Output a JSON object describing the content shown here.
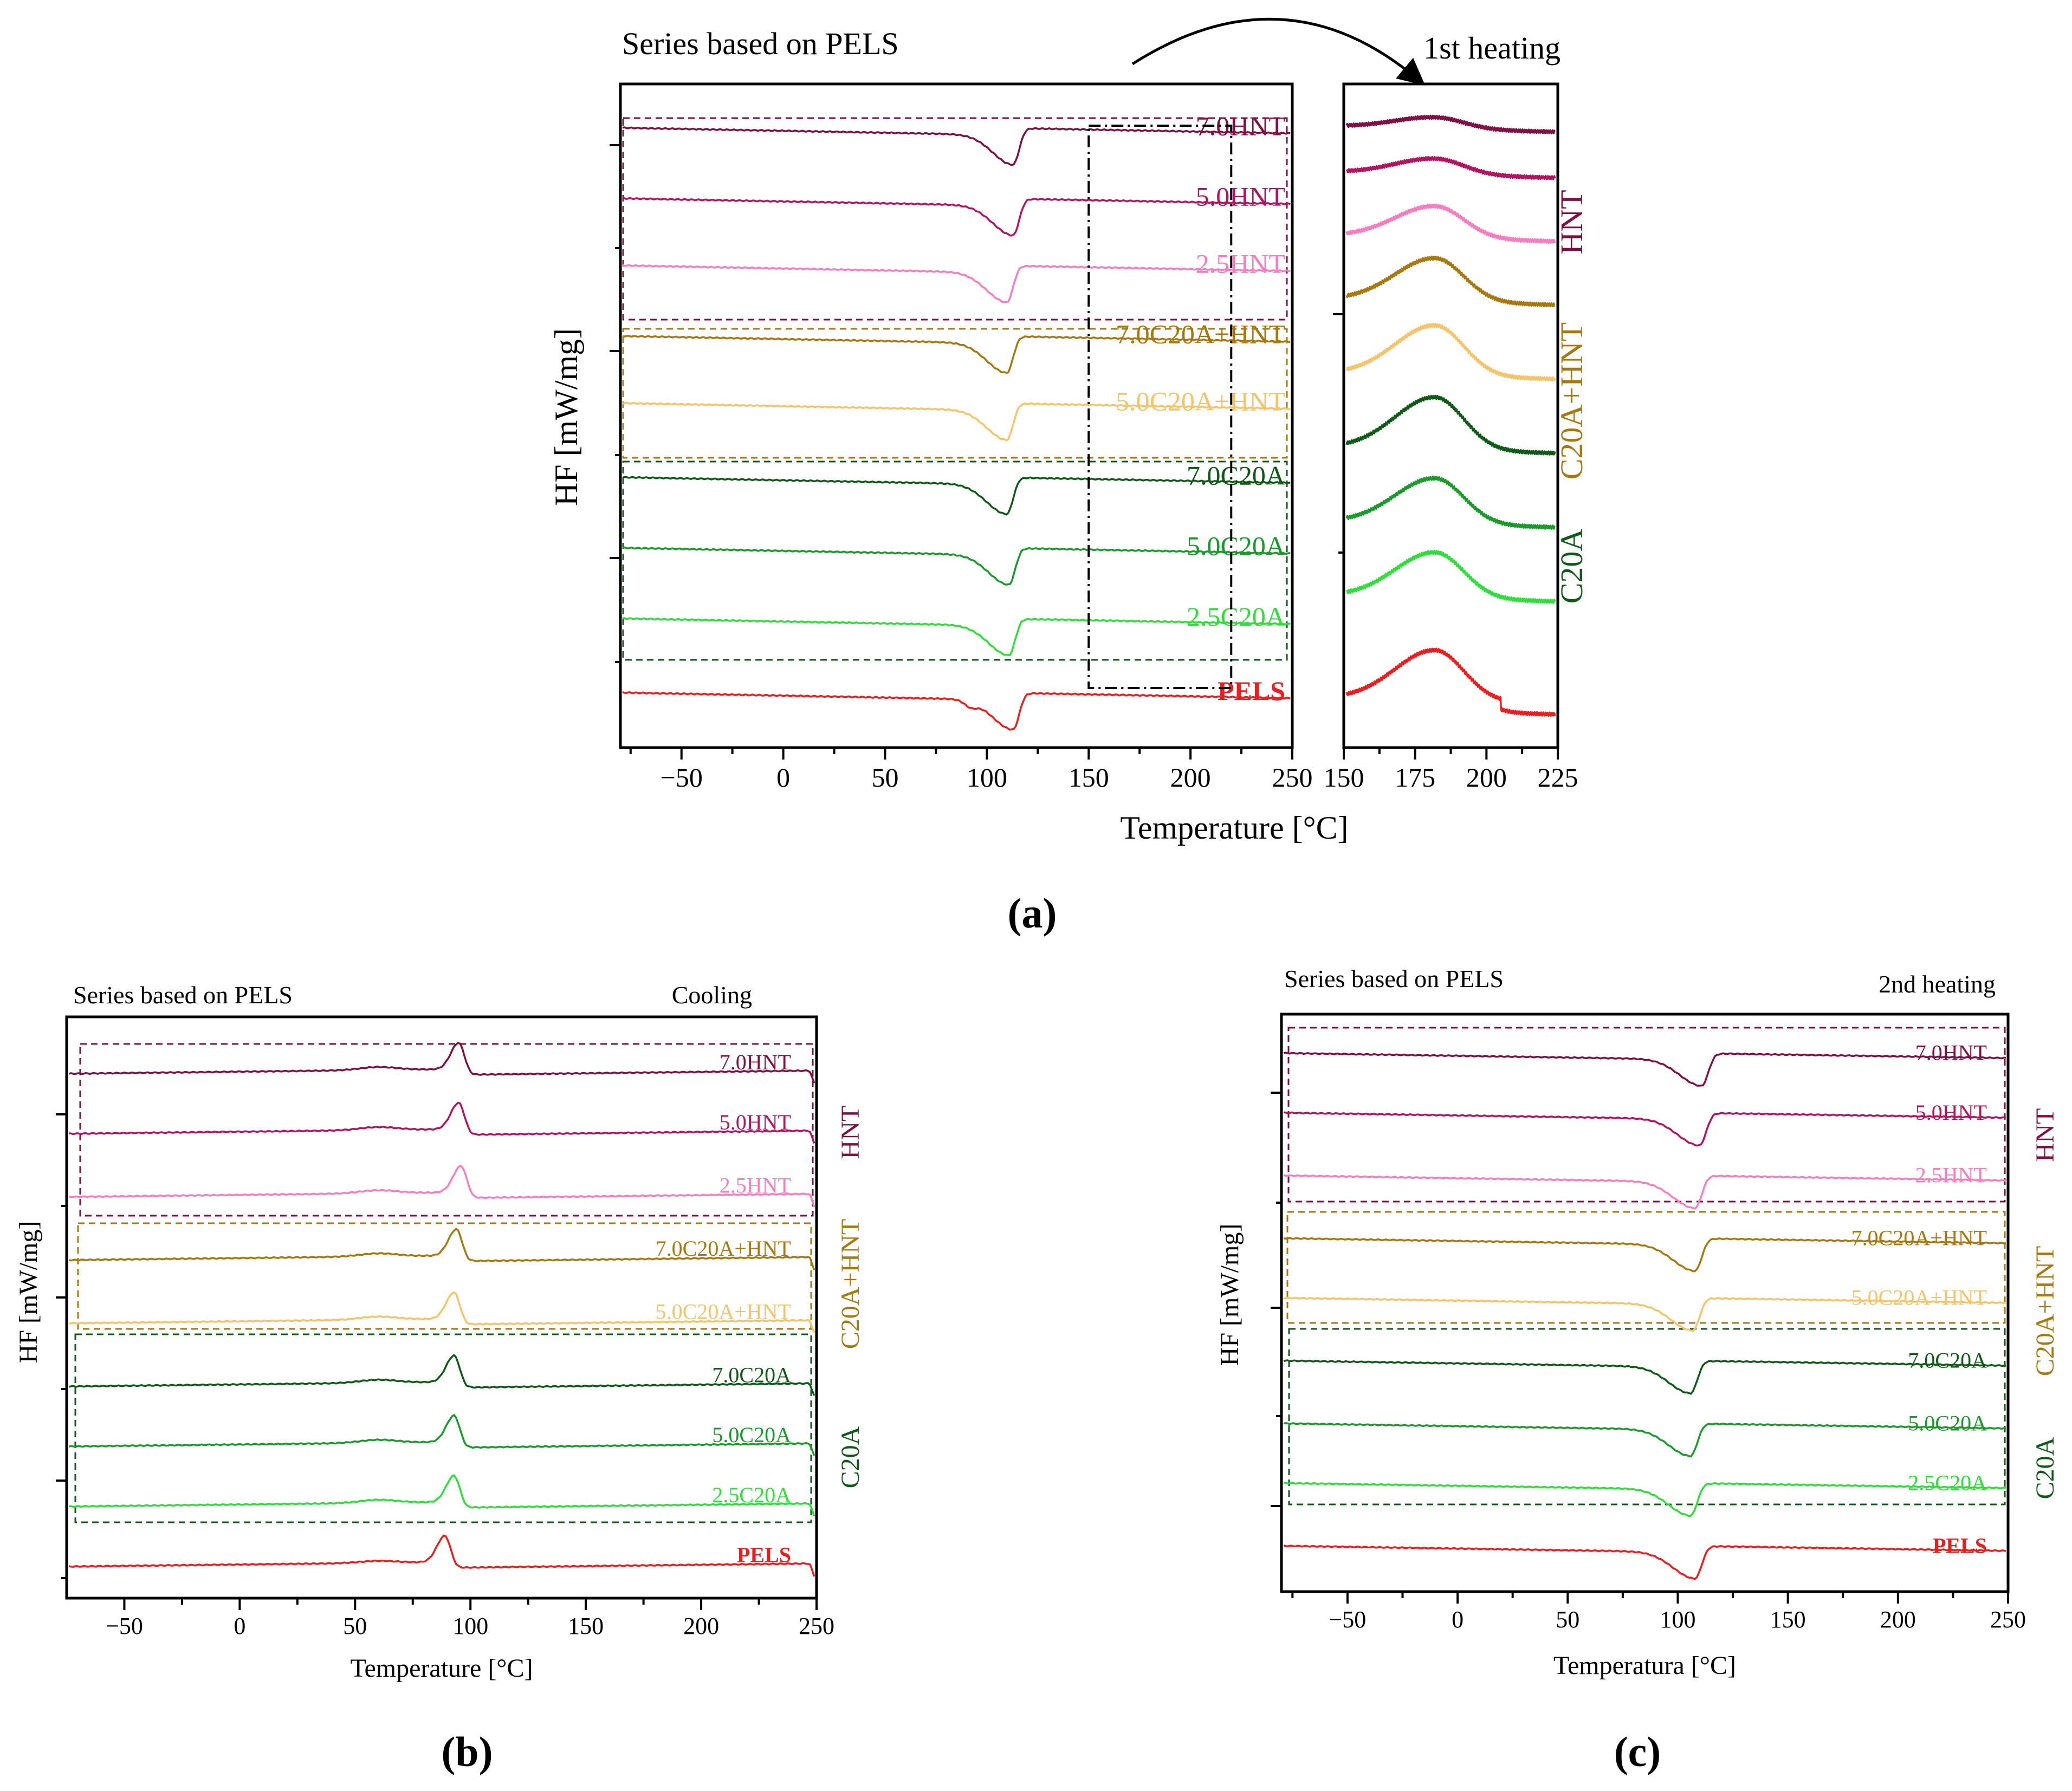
{
  "colors": {
    "7.0HNT": "#7e1043",
    "5.0HNT": "#b31462",
    "2.5HNT": "#f67ec0",
    "7.0C20A+HNT": "#a8780f",
    "5.0C20A+HNT": "#f5c46a",
    "7.0C20A": "#0f5a16",
    "5.0C20A": "#1a9a2b",
    "2.5C20A": "#2fde3a",
    "PELS": "#ee1c1c",
    "HNT": "#7e1043",
    "C20A+HNT": "#a8780f",
    "C20A": "#0f5a16"
  },
  "panel_labels": {
    "a": "(a)",
    "b": "(b)",
    "c": "(c)"
  },
  "chart_data": [
    {
      "id": "a-main",
      "type": "line",
      "title": "Series based on PELS",
      "xlabel": "Temperature [°C]",
      "ylabel": "HF [mW/mg]",
      "xlim": [
        -80,
        250
      ],
      "xticks": [
        -50,
        0,
        50,
        100,
        150,
        200,
        250
      ],
      "xtick_labels": [
        "−50",
        "0",
        "50",
        "100",
        "150",
        "200",
        "250"
      ],
      "zoom_region": [
        150,
        220
      ],
      "series": [
        {
          "name": "7.0HNT",
          "label": "7.0HNT",
          "offset": 8.2,
          "dir": -1,
          "tm": 113
        },
        {
          "name": "5.0HNT",
          "label": "5.0HNT",
          "offset": 7.2,
          "dir": -1,
          "tm": 113
        },
        {
          "name": "2.5HNT",
          "label": "2.5HNT",
          "offset": 6.25,
          "dir": -1,
          "tm": 110
        },
        {
          "name": "7.0C20A+HNT",
          "label": "7.0C20A+HNT",
          "offset": 5.25,
          "dir": -1,
          "tm": 110
        },
        {
          "name": "5.0C20A+HNT",
          "label": "5.0C20A+HNT",
          "offset": 4.3,
          "dir": -1,
          "tm": 110
        },
        {
          "name": "7.0C20A",
          "label": "7.0C20A",
          "offset": 3.25,
          "dir": -1,
          "tm": 110
        },
        {
          "name": "5.0C20A",
          "label": "5.0C20A",
          "offset": 2.25,
          "dir": -1,
          "tm": 111
        },
        {
          "name": "2.5C20A",
          "label": "2.5C20A",
          "offset": 1.25,
          "dir": -1,
          "tm": 111
        },
        {
          "name": "PELS",
          "label": "PELS",
          "offset": 0.2,
          "dir": -1,
          "tm": 113
        }
      ]
    },
    {
      "id": "a-zoom",
      "type": "line",
      "title": "1st heating",
      "xlim": [
        150,
        225
      ],
      "xticks": [
        150,
        175,
        200,
        225
      ],
      "xtick_labels": [
        "150",
        "175",
        "200",
        "225"
      ],
      "group_labels": [
        "HNT",
        "C20A+HNT",
        "C20A"
      ],
      "series": [
        {
          "name": "7.0HNT",
          "offset": 8.4,
          "peak": 0.25
        },
        {
          "name": "5.0HNT",
          "offset": 7.75,
          "peak": 0.35
        },
        {
          "name": "2.5HNT",
          "offset": 6.85,
          "peak": 0.7
        },
        {
          "name": "7.0C20A+HNT",
          "offset": 5.95,
          "peak": 0.95
        },
        {
          "name": "5.0C20A+HNT",
          "offset": 4.9,
          "peak": 1.1
        },
        {
          "name": "7.0C20A",
          "offset": 3.85,
          "peak": 1.15
        },
        {
          "name": "5.0C20A",
          "offset": 2.8,
          "peak": 1.0
        },
        {
          "name": "2.5C20A",
          "offset": 1.75,
          "peak": 1.0
        },
        {
          "name": "PELS",
          "offset": 0.3,
          "peak": 1.1
        }
      ]
    },
    {
      "id": "b",
      "type": "line",
      "title": "Series based on PELS",
      "mode_label": "Cooling",
      "xlabel": "Temperature [°C]",
      "ylabel": "HF [mW/mg]",
      "xlim": [
        -75,
        250
      ],
      "xticks": [
        -50,
        0,
        50,
        100,
        150,
        200,
        250
      ],
      "xtick_labels": [
        "−50",
        "0",
        "50",
        "100",
        "150",
        "200",
        "250"
      ],
      "group_labels": [
        "HNT",
        "C20A+HNT",
        "C20A"
      ],
      "series": [
        {
          "name": "7.0HNT",
          "label": "7.0HNT",
          "offset": 8.1,
          "dir": 1,
          "tm": 95
        },
        {
          "name": "5.0HNT",
          "label": "5.0HNT",
          "offset": 7.15,
          "dir": 1,
          "tm": 95
        },
        {
          "name": "2.5HNT",
          "label": "2.5HNT",
          "offset": 6.15,
          "dir": 1,
          "tm": 96
        },
        {
          "name": "7.0C20A+HNT",
          "label": "7.0C20A+HNT",
          "offset": 5.15,
          "dir": 1,
          "tm": 94
        },
        {
          "name": "5.0C20A+HNT",
          "label": "5.0C20A+HNT",
          "offset": 4.15,
          "dir": 1,
          "tm": 93
        },
        {
          "name": "7.0C20A",
          "label": "7.0C20A",
          "offset": 3.15,
          "dir": 1,
          "tm": 93
        },
        {
          "name": "5.0C20A",
          "label": "5.0C20A",
          "offset": 2.2,
          "dir": 1,
          "tm": 93
        },
        {
          "name": "2.5C20A",
          "label": "2.5C20A",
          "offset": 1.25,
          "dir": 1,
          "tm": 93
        },
        {
          "name": "PELS",
          "label": "PELS",
          "offset": 0.3,
          "dir": 1,
          "tm": 89
        }
      ]
    },
    {
      "id": "c",
      "type": "line",
      "title": "Series based on PELS",
      "mode_label": "2nd heating",
      "xlabel": "Temperatura [°C]",
      "ylabel": "HF [mW/mg]",
      "xlim": [
        -80,
        250
      ],
      "xticks": [
        -50,
        0,
        50,
        100,
        150,
        200,
        250
      ],
      "xtick_labels": [
        "−50",
        "0",
        "50",
        "100",
        "150",
        "200",
        "250"
      ],
      "group_labels": [
        "HNT",
        "C20A+HNT",
        "C20A"
      ],
      "series": [
        {
          "name": "7.0HNT",
          "label": "7.0HNT",
          "offset": 8.2,
          "dir": -1,
          "tm": 111
        },
        {
          "name": "5.0HNT",
          "label": "5.0HNT",
          "offset": 7.25,
          "dir": -1,
          "tm": 110
        },
        {
          "name": "2.5HNT",
          "label": "2.5HNT",
          "offset": 6.25,
          "dir": -1,
          "tm": 108
        },
        {
          "name": "7.0C20A+HNT",
          "label": "7.0C20A+HNT",
          "offset": 5.25,
          "dir": -1,
          "tm": 108
        },
        {
          "name": "5.0C20A+HNT",
          "label": "5.0C20A+HNT",
          "offset": 4.3,
          "dir": -1,
          "tm": 107
        },
        {
          "name": "7.0C20A",
          "label": "7.0C20A",
          "offset": 3.3,
          "dir": -1,
          "tm": 106
        },
        {
          "name": "5.0C20A",
          "label": "5.0C20A",
          "offset": 2.3,
          "dir": -1,
          "tm": 106
        },
        {
          "name": "2.5C20A",
          "label": "2.5C20A",
          "offset": 1.35,
          "dir": -1,
          "tm": 106
        },
        {
          "name": "PELS",
          "label": "PELS",
          "offset": 0.35,
          "dir": -1,
          "tm": 108
        }
      ]
    }
  ]
}
